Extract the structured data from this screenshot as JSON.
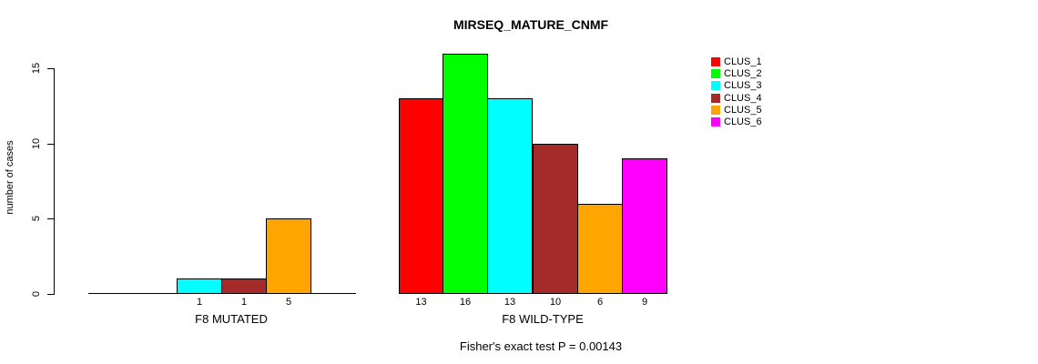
{
  "chart_data": {
    "type": "bar",
    "title": "MIRSEQ_MATURE_CNMF",
    "ylabel": "number of cases",
    "xlabel": "",
    "yticks": [
      0,
      5,
      10,
      15
    ],
    "ylim": [
      0,
      16
    ],
    "grid": false,
    "legend_position": "right",
    "bar_value_labels": true,
    "categories": [
      "F8 MUTATED",
      "F8 WILD-TYPE"
    ],
    "series": [
      {
        "name": "CLUS_1",
        "color": "#FF0000",
        "values": [
          0,
          13
        ]
      },
      {
        "name": "CLUS_2",
        "color": "#00FF00",
        "values": [
          0,
          16
        ]
      },
      {
        "name": "CLUS_3",
        "color": "#00FFFF",
        "values": [
          1,
          13
        ]
      },
      {
        "name": "CLUS_4",
        "color": "#A52A2A",
        "values": [
          1,
          10
        ]
      },
      {
        "name": "CLUS_5",
        "color": "#FFA500",
        "values": [
          5,
          6
        ]
      },
      {
        "name": "CLUS_6",
        "color": "#FF00FF",
        "values": [
          0,
          9
        ]
      }
    ],
    "annotation": "Fisher's exact test P = 0.00143"
  }
}
